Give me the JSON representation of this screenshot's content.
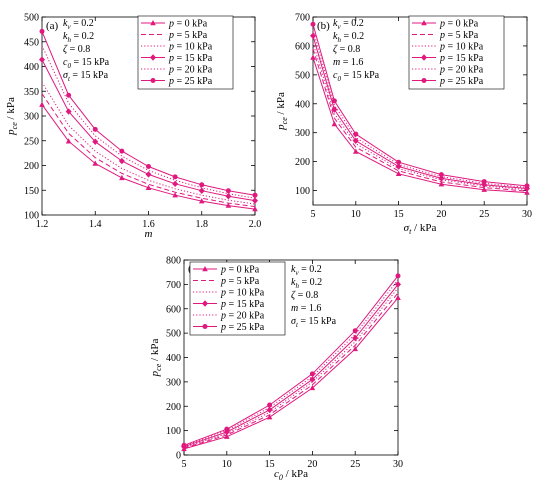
{
  "colors": {
    "series": "#e0197f",
    "axis": "#000000",
    "background": "#ffffff"
  },
  "chart_data": [
    {
      "type": "line",
      "panel_label": "(a)",
      "xlabel": "m",
      "ylabel": "p_ce / kPa",
      "xlim": [
        1.2,
        2.0
      ],
      "ylim": [
        100,
        500
      ],
      "xticks": [
        1.2,
        1.4,
        1.6,
        1.8,
        2.0
      ],
      "xtick_labels": [
        "1.2",
        "1.4",
        "1.6",
        "1.8",
        "2.0"
      ],
      "yticks": [
        100,
        150,
        200,
        250,
        300,
        350,
        400,
        450,
        500
      ],
      "ytick_labels": [
        "100",
        "150",
        "200",
        "250",
        "300",
        "350",
        "400",
        "450",
        "500"
      ],
      "grid": false,
      "legend_position": "top-right",
      "parameters": [
        {
          "sym": "k",
          "sub": "v",
          "rest": " = 0.2"
        },
        {
          "sym": "k",
          "sub": "h",
          "rest": " = 0.2"
        },
        {
          "sym": "ζ",
          "sub": "",
          "rest": " = 0.8"
        },
        {
          "sym": "c",
          "sub": "0",
          "rest": " = 15 kPa"
        },
        {
          "sym": "σ",
          "sub": "t",
          "rest": " = 15 kPa"
        }
      ],
      "x": [
        1.2,
        1.3,
        1.4,
        1.5,
        1.6,
        1.7,
        1.8,
        1.9,
        2.0
      ],
      "series": [
        {
          "name": "p = 0 kPa",
          "marker": "triangle",
          "dash": "solid",
          "values": [
            323,
            249,
            204,
            175,
            155,
            140,
            128,
            119,
            112
          ]
        },
        {
          "name": "p = 5 kPa",
          "marker": "none",
          "dash": "dash",
          "values": [
            345,
            265,
            216,
            184,
            162,
            146,
            134,
            124,
            117
          ]
        },
        {
          "name": "p = 10 kPa",
          "marker": "none",
          "dash": "dot",
          "values": [
            368,
            281,
            229,
            194,
            170,
            153,
            140,
            130,
            122
          ]
        },
        {
          "name": "p = 15 kPa",
          "marker": "diamond",
          "dash": "solid",
          "values": [
            414,
            309,
            248,
            209,
            182,
            163,
            149,
            138,
            129
          ]
        },
        {
          "name": "p = 20 kPa",
          "marker": "none",
          "dash": "dot",
          "values": [
            442,
            326,
            260,
            219,
            190,
            170,
            155,
            143,
            134
          ]
        },
        {
          "name": "p = 25 kPa",
          "marker": "circle",
          "dash": "solid",
          "values": [
            471,
            342,
            273,
            229,
            198,
            177,
            161,
            149,
            140
          ]
        }
      ]
    },
    {
      "type": "line",
      "panel_label": "(b)",
      "xlabel": "σ_t / kPa",
      "ylabel": "p_ce / kPa",
      "xlim": [
        5,
        30
      ],
      "ylim": [
        50,
        700
      ],
      "xticks": [
        5,
        10,
        15,
        20,
        25,
        30
      ],
      "xtick_labels": [
        "5",
        "10",
        "15",
        "20",
        "25",
        "30"
      ],
      "yticks": [
        100,
        200,
        300,
        400,
        500,
        600,
        700
      ],
      "ytick_labels": [
        "100",
        "200",
        "300",
        "400",
        "500",
        "600",
        "700"
      ],
      "grid": false,
      "legend_position": "top-right",
      "parameters": [
        {
          "sym": "k",
          "sub": "v",
          "rest": " = 0.2"
        },
        {
          "sym": "k",
          "sub": "h",
          "rest": " = 0.2"
        },
        {
          "sym": "ζ",
          "sub": "",
          "rest": " = 0.8"
        },
        {
          "sym": "m",
          "sub": "",
          "rest": " = 1.6"
        },
        {
          "sym": "c",
          "sub": "0",
          "rest": " = 15 kPa"
        }
      ],
      "x": [
        5,
        7.5,
        10,
        15,
        20,
        25,
        30
      ],
      "series": [
        {
          "name": "p = 0 kPa",
          "marker": "triangle",
          "dash": "solid",
          "values": [
            560,
            330,
            235,
            158,
            122,
            103,
            93
          ]
        },
        {
          "name": "p = 5 kPa",
          "marker": "none",
          "dash": "dash",
          "values": [
            590,
            350,
            250,
            168,
            130,
            110,
            98
          ]
        },
        {
          "name": "p = 10 kPa",
          "marker": "none",
          "dash": "dot",
          "values": [
            610,
            365,
            262,
            176,
            137,
            116,
            103
          ]
        },
        {
          "name": "p = 15 kPa",
          "marker": "diamond",
          "dash": "solid",
          "values": [
            635,
            380,
            272,
            183,
            142,
            120,
            107
          ]
        },
        {
          "name": "p = 20 kPa",
          "marker": "none",
          "dash": "dot",
          "values": [
            655,
            395,
            283,
            190,
            148,
            125,
            111
          ]
        },
        {
          "name": "p = 25 kPa",
          "marker": "circle",
          "dash": "solid",
          "values": [
            675,
            410,
            295,
            198,
            155,
            131,
            116
          ]
        }
      ]
    },
    {
      "type": "line",
      "panel_label": "(c)",
      "xlabel": "c_0 / kPa",
      "ylabel": "p_ce / kPa",
      "xlim": [
        5,
        30
      ],
      "ylim": [
        0,
        800
      ],
      "xticks": [
        5,
        10,
        15,
        20,
        25,
        30
      ],
      "xtick_labels": [
        "5",
        "10",
        "15",
        "20",
        "25",
        "30"
      ],
      "yticks": [
        0,
        100,
        200,
        300,
        400,
        500,
        600,
        700,
        800
      ],
      "ytick_labels": [
        "0",
        "100",
        "200",
        "300",
        "400",
        "500",
        "600",
        "700",
        "800"
      ],
      "grid": false,
      "legend_position": "top-left",
      "parameters": [
        {
          "sym": "k",
          "sub": "v",
          "rest": " = 0.2"
        },
        {
          "sym": "k",
          "sub": "h",
          "rest": " = 0.2"
        },
        {
          "sym": "ζ",
          "sub": "",
          "rest": " = 0.8"
        },
        {
          "sym": "m",
          "sub": "",
          "rest": " = 1.6"
        },
        {
          "sym": "σ",
          "sub": "t",
          "rest": " = 15 kPa"
        }
      ],
      "x": [
        5,
        10,
        15,
        20,
        25,
        30
      ],
      "series": [
        {
          "name": "p = 0 kPa",
          "marker": "triangle",
          "dash": "solid",
          "values": [
            25,
            75,
            155,
            275,
            435,
            645
          ]
        },
        {
          "name": "p = 5 kPa",
          "marker": "none",
          "dash": "dash",
          "values": [
            28,
            82,
            165,
            288,
            450,
            665
          ]
        },
        {
          "name": "p = 10 kPa",
          "marker": "none",
          "dash": "dot",
          "values": [
            31,
            88,
            175,
            300,
            465,
            685
          ]
        },
        {
          "name": "p = 15 kPa",
          "marker": "diamond",
          "dash": "solid",
          "values": [
            34,
            94,
            185,
            310,
            480,
            700
          ]
        },
        {
          "name": "p = 20 kPa",
          "marker": "none",
          "dash": "dot",
          "values": [
            37,
            100,
            195,
            322,
            495,
            718
          ]
        },
        {
          "name": "p = 25 kPa",
          "marker": "circle",
          "dash": "solid",
          "values": [
            40,
            106,
            205,
            333,
            510,
            735
          ]
        }
      ]
    }
  ]
}
